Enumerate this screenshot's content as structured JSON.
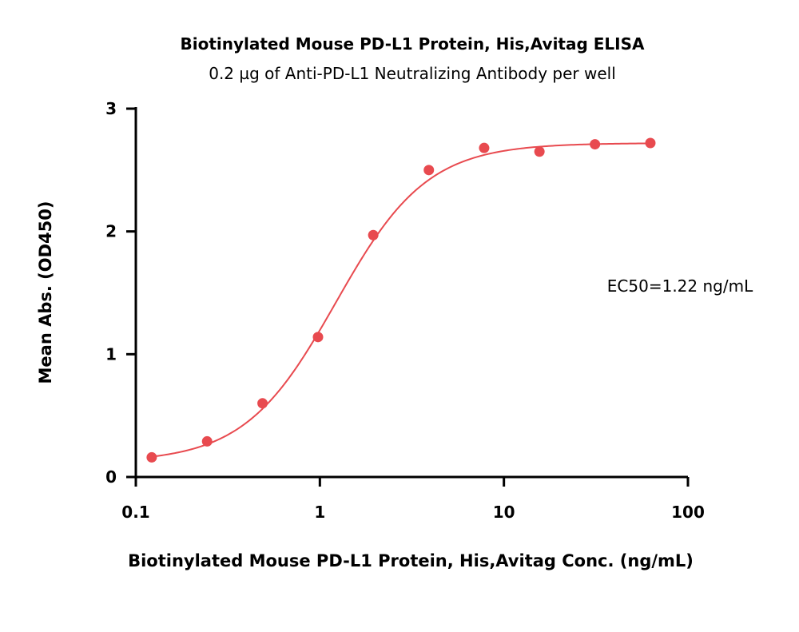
{
  "chart_data": {
    "type": "scatter",
    "title": "Biotinylated Mouse PD-L1 Protein, His,Avitag ELISA",
    "subtitle": "0.2 µg of Anti-PD-L1 Neutralizing Antibody per well",
    "xlabel": "Biotinylated Mouse PD-L1 Protein, His,Avitag Conc. (ng/mL)",
    "ylabel": "Mean Abs. (OD450)",
    "x_scale": "log",
    "xlim": [
      0.1,
      100
    ],
    "ylim": [
      0,
      3
    ],
    "x_ticks": [
      0.1,
      1,
      10,
      100
    ],
    "x_tick_labels": [
      "0.1",
      "1",
      "10",
      "100"
    ],
    "y_ticks": [
      0,
      1,
      2,
      3
    ],
    "y_tick_labels": [
      "0",
      "1",
      "2",
      "3"
    ],
    "grid": false,
    "annotation": "EC50=1.22 ng/mL",
    "color": "#e84a4f",
    "x": [
      0.122,
      0.244,
      0.488,
      0.977,
      1.95,
      3.91,
      7.81,
      15.6,
      31.25,
      62.5
    ],
    "y": [
      0.16,
      0.29,
      0.6,
      1.14,
      1.97,
      2.5,
      2.68,
      2.65,
      2.71,
      2.72
    ],
    "fit": {
      "model": "4PL",
      "bottom": 0.12,
      "top": 2.72,
      "ec50": 1.22,
      "hill": 1.75
    }
  }
}
